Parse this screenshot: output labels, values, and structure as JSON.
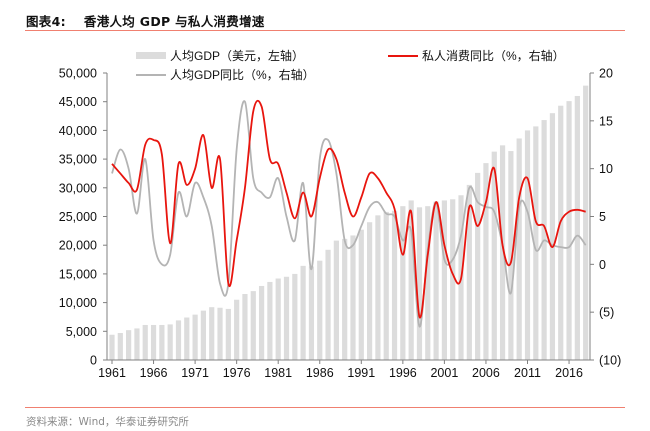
{
  "header": {
    "figure_label": "图表4:",
    "title": "香港人均 GDP 与私人消费增速"
  },
  "footer": {
    "source": "资料来源：Wind，华泰证券研究所"
  },
  "colors": {
    "bar": "#dcdcdc",
    "consumption_line": "#e8150e",
    "gdp_growth_line": "#b4b4b4",
    "accent_rule": "#f08070",
    "axis": "#808080"
  },
  "chart_data": {
    "type": "bar+line",
    "title": "香港人均 GDP 与私人消费增速",
    "xlabel": "",
    "ylabel_left": "",
    "ylabel_right": "",
    "x": [
      1961,
      1962,
      1963,
      1964,
      1965,
      1966,
      1967,
      1968,
      1969,
      1970,
      1971,
      1972,
      1973,
      1974,
      1975,
      1976,
      1977,
      1978,
      1979,
      1980,
      1981,
      1982,
      1983,
      1984,
      1985,
      1986,
      1987,
      1988,
      1989,
      1990,
      1991,
      1992,
      1993,
      1994,
      1995,
      1996,
      1997,
      1998,
      1999,
      2000,
      2001,
      2002,
      2003,
      2004,
      2005,
      2006,
      2007,
      2008,
      2009,
      2010,
      2011,
      2012,
      2013,
      2014,
      2015,
      2016,
      2017,
      2018
    ],
    "x_tick_labels": [
      "1961",
      "1966",
      "1971",
      "1976",
      "1981",
      "1986",
      "1991",
      "1996",
      "2001",
      "2006",
      "2011",
      "2016"
    ],
    "left_axis": {
      "ylim": [
        0,
        50000
      ],
      "ticks": [
        0,
        5000,
        10000,
        15000,
        20000,
        25000,
        30000,
        35000,
        40000,
        45000,
        50000
      ],
      "tick_labels": [
        "0",
        "5,000",
        "10,000",
        "15,000",
        "20,000",
        "25,000",
        "30,000",
        "35,000",
        "40,000",
        "45,000",
        "50,000"
      ]
    },
    "right_axis": {
      "ylim": [
        -10,
        20
      ],
      "ticks": [
        -10,
        -5,
        0,
        5,
        10,
        15,
        20
      ],
      "tick_labels": [
        "(10)",
        "(5)",
        "0",
        "5",
        "10",
        "15",
        "20"
      ]
    },
    "legend": {
      "placement": "top",
      "entries": [
        {
          "name": "人均GDP（美元，左轴）",
          "kind": "bar"
        },
        {
          "name": "私人消费同比（%，右轴）",
          "kind": "line-red"
        },
        {
          "name": "人均GDP同比（%，右轴）",
          "kind": "line-gray"
        }
      ]
    },
    "series": [
      {
        "name": "人均GDP（美元，左轴）",
        "type": "bar",
        "axis": "left",
        "values": [
          4400,
          4700,
          5200,
          5500,
          6100,
          6100,
          6100,
          6200,
          6900,
          7400,
          7900,
          8600,
          9200,
          9100,
          8900,
          10500,
          11500,
          12000,
          12900,
          13600,
          14200,
          14500,
          15000,
          16400,
          16300,
          17300,
          19200,
          20800,
          21100,
          21700,
          22700,
          24000,
          25200,
          25800,
          26000,
          26800,
          27800,
          26600,
          26800,
          27600,
          27800,
          28000,
          28700,
          30500,
          32600,
          34300,
          36300,
          37400,
          36400,
          38600,
          40000,
          40700,
          41800,
          43000,
          44300,
          45100,
          46000,
          47800
        ]
      },
      {
        "name": "私人消费同比（%，右轴）",
        "type": "line",
        "axis": "right",
        "values": [
          10.5,
          9.5,
          8.5,
          7.8,
          12.5,
          13.0,
          11.5,
          2.2,
          10.5,
          8.3,
          10.0,
          13.5,
          8.0,
          11.0,
          -2.0,
          2.5,
          8.0,
          16.0,
          16.5,
          11.0,
          10.5,
          7.5,
          4.8,
          7.5,
          5.0,
          9.0,
          12.0,
          11.0,
          7.5,
          5.0,
          7.0,
          9.5,
          9.0,
          7.5,
          5.8,
          1.0,
          5.5,
          -5.5,
          1.0,
          6.5,
          2.0,
          -1.0,
          -1.5,
          6.0,
          4.0,
          6.5,
          10.0,
          2.0,
          0.2,
          7.0,
          9.0,
          4.5,
          4.0,
          1.8,
          4.5,
          5.5,
          5.7,
          5.5
        ]
      },
      {
        "name": "人均GDP同比（%，右轴）",
        "type": "line",
        "axis": "right",
        "values": [
          9.5,
          12.0,
          10.0,
          5.3,
          11.0,
          2.5,
          0.0,
          1.0,
          7.5,
          5.0,
          8.5,
          7.0,
          4.0,
          -2.0,
          -2.0,
          12.0,
          17.0,
          9.0,
          7.5,
          7.0,
          9.0,
          5.0,
          2.5,
          8.5,
          -0.5,
          11.0,
          13.0,
          9.5,
          2.5,
          2.0,
          4.0,
          6.0,
          6.5,
          5.3,
          5.0,
          2.5,
          3.5,
          -6.5,
          1.5,
          6.5,
          0.5,
          0.5,
          3.0,
          8.0,
          6.5,
          6.0,
          5.5,
          2.0,
          -3.0,
          6.0,
          5.5,
          1.5,
          2.5,
          2.0,
          1.8,
          1.8,
          3.0,
          2.0
        ]
      }
    ]
  }
}
